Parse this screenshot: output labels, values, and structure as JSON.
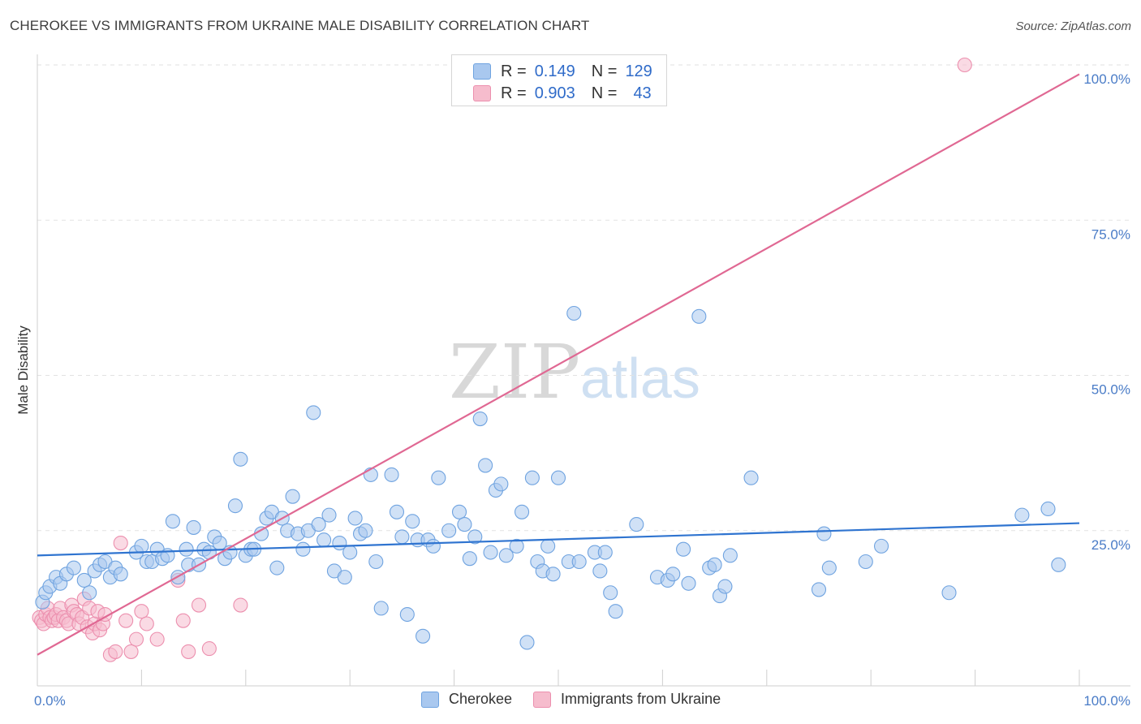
{
  "header": {
    "title": "CHEROKEE VS IMMIGRANTS FROM UKRAINE MALE DISABILITY CORRELATION CHART",
    "source": "Source: ZipAtlas.com"
  },
  "watermark": {
    "zip": "ZIP",
    "atlas": "atlas"
  },
  "legend": {
    "rows": [
      {
        "r_label": "R =",
        "r_value": "0.149",
        "n_label": "N =",
        "n_value": "129",
        "color": "#a9c8ef"
      },
      {
        "r_label": "R =",
        "r_value": "0.903",
        "n_label": "N =",
        "n_value": "43",
        "color": "#f6bccd"
      }
    ]
  },
  "bottom_legend": [
    {
      "label": "Cherokee",
      "color": "#a9c8ef"
    },
    {
      "label": "Immigrants from Ukraine",
      "color": "#f6bccd"
    }
  ],
  "chart_data": {
    "type": "scatter",
    "title": "CHEROKEE VS IMMIGRANTS FROM UKRAINE MALE DISABILITY CORRELATION CHART",
    "xlabel": "",
    "ylabel": "Male Disability",
    "xlim": [
      0,
      100
    ],
    "ylim": [
      0,
      100
    ],
    "x_tick_labels": [
      "0.0%",
      "100.0%"
    ],
    "y_tick_labels": [
      "25.0%",
      "50.0%",
      "75.0%",
      "100.0%"
    ],
    "y_ticks": [
      25,
      50,
      75,
      100
    ],
    "grid": true,
    "series": [
      {
        "name": "Cherokee",
        "color": "#6fa3e0",
        "fill": "#a9c8ef",
        "trend": {
          "x": [
            0,
            100
          ],
          "y": [
            21.0,
            26.2
          ],
          "color": "#2f74d0"
        },
        "points": [
          [
            0.5,
            13.5
          ],
          [
            0.8,
            15.0
          ],
          [
            1.2,
            16.0
          ],
          [
            1.8,
            17.5
          ],
          [
            2.2,
            16.5
          ],
          [
            2.8,
            18.0
          ],
          [
            3.5,
            19.0
          ],
          [
            4.5,
            17.0
          ],
          [
            5.0,
            15.0
          ],
          [
            5.5,
            18.5
          ],
          [
            6.0,
            19.5
          ],
          [
            6.5,
            20.0
          ],
          [
            7.0,
            17.5
          ],
          [
            7.5,
            19.0
          ],
          [
            8.0,
            18.0
          ],
          [
            9.5,
            21.5
          ],
          [
            10.0,
            22.5
          ],
          [
            10.5,
            20.0
          ],
          [
            11.0,
            20.0
          ],
          [
            11.5,
            22.0
          ],
          [
            12.0,
            20.5
          ],
          [
            12.5,
            21.0
          ],
          [
            13.0,
            26.5
          ],
          [
            13.5,
            17.5
          ],
          [
            14.3,
            22.0
          ],
          [
            14.5,
            19.5
          ],
          [
            15.0,
            25.5
          ],
          [
            15.5,
            19.5
          ],
          [
            16.0,
            22.0
          ],
          [
            16.5,
            21.5
          ],
          [
            17.0,
            24.0
          ],
          [
            17.5,
            23.0
          ],
          [
            18.0,
            20.5
          ],
          [
            18.5,
            21.5
          ],
          [
            19.0,
            29.0
          ],
          [
            19.5,
            36.5
          ],
          [
            20.0,
            21.0
          ],
          [
            20.5,
            22.0
          ],
          [
            20.8,
            22.0
          ],
          [
            21.5,
            24.5
          ],
          [
            22.0,
            27.0
          ],
          [
            22.5,
            28.0
          ],
          [
            23.0,
            19.0
          ],
          [
            23.5,
            27.0
          ],
          [
            24.0,
            25.0
          ],
          [
            24.5,
            30.5
          ],
          [
            25.0,
            24.5
          ],
          [
            25.5,
            22.0
          ],
          [
            26.0,
            25.0
          ],
          [
            26.5,
            44.0
          ],
          [
            27.0,
            26.0
          ],
          [
            27.5,
            23.5
          ],
          [
            28.0,
            27.5
          ],
          [
            28.5,
            18.5
          ],
          [
            29.0,
            23.0
          ],
          [
            29.5,
            17.5
          ],
          [
            30.0,
            21.5
          ],
          [
            30.5,
            27.0
          ],
          [
            31.0,
            24.5
          ],
          [
            31.5,
            25.0
          ],
          [
            32.0,
            34.0
          ],
          [
            32.5,
            20.0
          ],
          [
            33.0,
            12.5
          ],
          [
            34.0,
            34.0
          ],
          [
            34.5,
            28.0
          ],
          [
            35.0,
            24.0
          ],
          [
            35.5,
            11.5
          ],
          [
            36.0,
            26.5
          ],
          [
            36.5,
            23.5
          ],
          [
            37.0,
            8.0
          ],
          [
            37.5,
            23.5
          ],
          [
            38.0,
            22.5
          ],
          [
            38.5,
            33.5
          ],
          [
            39.5,
            25.0
          ],
          [
            40.5,
            28.0
          ],
          [
            41.0,
            26.0
          ],
          [
            41.5,
            20.5
          ],
          [
            42.0,
            24.0
          ],
          [
            42.5,
            43.0
          ],
          [
            43.0,
            35.5
          ],
          [
            43.5,
            21.5
          ],
          [
            44.0,
            31.5
          ],
          [
            44.5,
            32.5
          ],
          [
            45.0,
            21.0
          ],
          [
            46.0,
            22.5
          ],
          [
            46.5,
            28.0
          ],
          [
            47.0,
            7.0
          ],
          [
            47.5,
            33.5
          ],
          [
            48.0,
            20.0
          ],
          [
            48.5,
            18.5
          ],
          [
            49.0,
            22.5
          ],
          [
            49.5,
            18.0
          ],
          [
            50.0,
            33.5
          ],
          [
            51.0,
            20.0
          ],
          [
            51.5,
            60.0
          ],
          [
            52.0,
            20.0
          ],
          [
            53.5,
            21.5
          ],
          [
            54.0,
            18.5
          ],
          [
            54.5,
            21.5
          ],
          [
            55.0,
            15.0
          ],
          [
            55.5,
            12.0
          ],
          [
            57.5,
            26.0
          ],
          [
            59.5,
            17.5
          ],
          [
            60.5,
            17.0
          ],
          [
            61.0,
            18.0
          ],
          [
            62.0,
            22.0
          ],
          [
            62.5,
            16.5
          ],
          [
            63.5,
            59.5
          ],
          [
            64.5,
            19.0
          ],
          [
            65.0,
            19.5
          ],
          [
            65.5,
            14.5
          ],
          [
            66.0,
            16.0
          ],
          [
            66.5,
            21.0
          ],
          [
            68.5,
            33.5
          ],
          [
            75.0,
            15.5
          ],
          [
            75.5,
            24.5
          ],
          [
            76.0,
            19.0
          ],
          [
            79.5,
            20.0
          ],
          [
            81.0,
            22.5
          ],
          [
            87.5,
            15.0
          ],
          [
            94.5,
            27.5
          ],
          [
            97.0,
            28.5
          ],
          [
            98.0,
            19.5
          ]
        ]
      },
      {
        "name": "Immigrants from Ukraine",
        "color": "#ec8fae",
        "fill": "#f6bccd",
        "trend": {
          "x": [
            0,
            100
          ],
          "y": [
            5.0,
            98.5
          ],
          "color": "#e06893"
        },
        "points": [
          [
            0.2,
            11.0
          ],
          [
            0.4,
            10.5
          ],
          [
            0.6,
            10.0
          ],
          [
            0.8,
            11.5
          ],
          [
            1.0,
            12.5
          ],
          [
            1.2,
            11.0
          ],
          [
            1.4,
            10.5
          ],
          [
            1.6,
            11.0
          ],
          [
            1.8,
            11.5
          ],
          [
            2.0,
            10.5
          ],
          [
            2.2,
            12.5
          ],
          [
            2.5,
            11.0
          ],
          [
            2.8,
            10.5
          ],
          [
            3.0,
            10.0
          ],
          [
            3.3,
            13.0
          ],
          [
            3.5,
            12.0
          ],
          [
            3.8,
            11.5
          ],
          [
            4.0,
            10.0
          ],
          [
            4.3,
            11.0
          ],
          [
            4.5,
            14.0
          ],
          [
            4.8,
            9.5
          ],
          [
            5.0,
            12.5
          ],
          [
            5.3,
            8.5
          ],
          [
            5.5,
            10.0
          ],
          [
            5.8,
            12.0
          ],
          [
            6.0,
            9.0
          ],
          [
            6.3,
            10.0
          ],
          [
            6.5,
            11.5
          ],
          [
            7.0,
            5.0
          ],
          [
            7.5,
            5.5
          ],
          [
            8.0,
            23.0
          ],
          [
            8.5,
            10.5
          ],
          [
            9.0,
            5.5
          ],
          [
            9.5,
            7.5
          ],
          [
            10.0,
            12.0
          ],
          [
            10.5,
            10.0
          ],
          [
            11.5,
            7.5
          ],
          [
            13.5,
            17.0
          ],
          [
            14.0,
            10.5
          ],
          [
            14.5,
            5.5
          ],
          [
            15.5,
            13.0
          ],
          [
            16.5,
            6.0
          ],
          [
            19.5,
            13.0
          ],
          [
            89.0,
            100.0
          ]
        ]
      }
    ]
  }
}
